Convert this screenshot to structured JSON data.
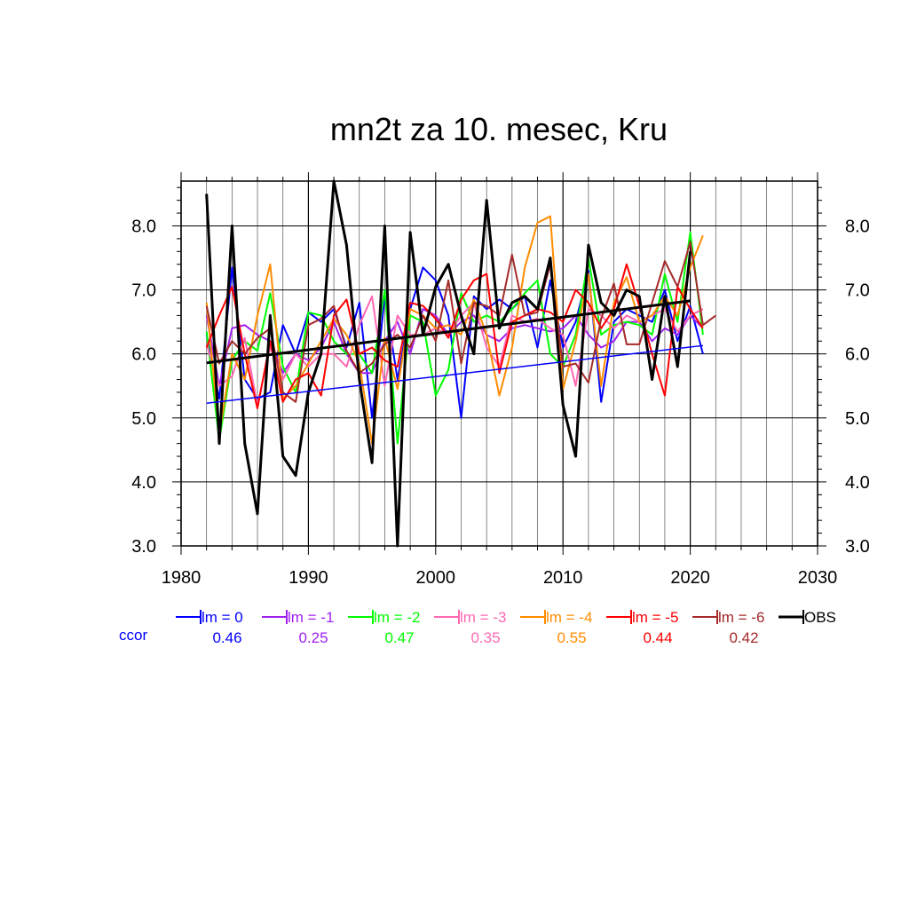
{
  "chart_data": {
    "type": "line",
    "title": "mn2t za 10. mesec, Kru",
    "xlim": [
      1980,
      2030
    ],
    "ylim": [
      3.0,
      8.7
    ],
    "x_ticks": [
      "1980",
      "1990",
      "2000",
      "2010",
      "2020",
      "2030"
    ],
    "y_ticks": [
      "3.0",
      "4.0",
      "5.0",
      "6.0",
      "7.0",
      "8.0"
    ],
    "grid": true,
    "legend_placement": "bottom",
    "ccor_label": "ccor",
    "series": [
      {
        "name": "lm = 0",
        "color": "#0000ff",
        "ccor": "0.46",
        "x": [
          1982,
          1983,
          1984,
          1985,
          1986,
          1987,
          1988,
          1989,
          1990,
          1991,
          1992,
          1993,
          1994,
          1995,
          1996,
          1997,
          1998,
          1999,
          2000,
          2001,
          2002,
          2003,
          2004,
          2005,
          2006,
          2007,
          2008,
          2009,
          2010,
          2011,
          2012,
          2013,
          2014,
          2015,
          2016,
          2017,
          2018,
          2019,
          2020,
          2021
        ],
        "y": [
          6.3,
          5.3,
          7.35,
          5.6,
          5.3,
          5.4,
          6.45,
          6.0,
          6.65,
          6.5,
          6.7,
          6.1,
          6.8,
          5.0,
          6.9,
          5.6,
          6.7,
          7.35,
          7.15,
          6.6,
          5.0,
          6.9,
          6.7,
          6.85,
          6.7,
          6.9,
          6.1,
          7.15,
          6.1,
          6.5,
          7.3,
          5.25,
          6.5,
          6.7,
          6.6,
          6.5,
          7.0,
          6.2,
          6.75,
          6.0
        ]
      },
      {
        "name": "lm = -1",
        "color": "#a020f0",
        "ccor": "0.25",
        "x": [
          1982,
          1983,
          1984,
          1985,
          1986,
          1987,
          1988,
          1989,
          1990,
          1991,
          1992,
          1993,
          1994,
          1995,
          1996,
          1997,
          1998,
          1999,
          2000,
          2001,
          2002,
          2003,
          2004,
          2005,
          2006,
          2007,
          2008,
          2009,
          2010,
          2011,
          2012,
          2013,
          2014,
          2015,
          2016,
          2017,
          2018,
          2019,
          2020,
          2021
        ],
        "y": [
          6.6,
          5.5,
          6.4,
          6.45,
          6.3,
          6.2,
          5.7,
          6.0,
          5.9,
          6.1,
          6.5,
          6.0,
          5.7,
          5.7,
          6.2,
          6.5,
          6.0,
          6.7,
          6.6,
          6.3,
          6.5,
          6.6,
          6.3,
          6.2,
          6.4,
          6.45,
          6.4,
          6.35,
          6.4,
          6.6,
          6.3,
          6.1,
          6.2,
          6.5,
          6.5,
          6.2,
          6.4,
          6.3,
          6.6,
          6.4
        ]
      },
      {
        "name": "lm = -2",
        "color": "#00ff00",
        "ccor": "0.47",
        "x": [
          1982,
          1983,
          1984,
          1985,
          1986,
          1987,
          1988,
          1989,
          1990,
          1991,
          1992,
          1993,
          1994,
          1995,
          1996,
          1997,
          1998,
          1999,
          2000,
          2001,
          2002,
          2003,
          2004,
          2005,
          2006,
          2007,
          2008,
          2009,
          2010,
          2011,
          2012,
          2013,
          2014,
          2015,
          2016,
          2017,
          2018,
          2019,
          2020,
          2021
        ],
        "y": [
          6.35,
          4.65,
          5.9,
          6.2,
          6.05,
          6.95,
          5.8,
          5.4,
          6.65,
          6.6,
          6.2,
          6.0,
          6.0,
          5.7,
          7.0,
          4.6,
          6.6,
          6.5,
          5.35,
          5.75,
          6.95,
          6.5,
          6.6,
          6.5,
          6.7,
          6.95,
          7.15,
          6.0,
          5.8,
          6.3,
          7.5,
          6.3,
          6.45,
          6.5,
          6.45,
          6.3,
          7.25,
          6.5,
          7.9,
          6.3
        ]
      },
      {
        "name": "lm = -3",
        "color": "#ff69b4",
        "ccor": "0.35",
        "x": [
          1982,
          1983,
          1984,
          1985,
          1986,
          1987,
          1988,
          1989,
          1990,
          1991,
          1992,
          1993,
          1994,
          1995,
          1996,
          1997,
          1998,
          1999,
          2000,
          2001,
          2002,
          2003,
          2004,
          2005,
          2006,
          2007,
          2008,
          2009,
          2010,
          2011,
          2012,
          2013,
          2014,
          2015,
          2016,
          2017,
          2018,
          2019,
          2020,
          2021
        ],
        "y": [
          6.15,
          5.5,
          5.65,
          6.25,
          5.2,
          6.1,
          5.6,
          6.0,
          5.8,
          6.0,
          6.0,
          5.8,
          6.45,
          6.9,
          5.5,
          6.6,
          6.3,
          6.3,
          6.4,
          6.3,
          6.6,
          6.8,
          6.1,
          5.8,
          6.6,
          6.5,
          6.55,
          6.4,
          6.3,
          5.5,
          6.7,
          6.6,
          6.4,
          6.6,
          6.5,
          6.6,
          6.7,
          6.35,
          6.6,
          6.7
        ]
      },
      {
        "name": "lm = -4",
        "color": "#ff8c00",
        "ccor": "0.55",
        "x": [
          1982,
          1983,
          1984,
          1985,
          1986,
          1987,
          1988,
          1989,
          1990,
          1991,
          1992,
          1993,
          1994,
          1995,
          1996,
          1997,
          1998,
          1999,
          2000,
          2001,
          2002,
          2003,
          2004,
          2005,
          2006,
          2007,
          2008,
          2009,
          2010,
          2011,
          2012,
          2013,
          2014,
          2015,
          2016,
          2017,
          2018,
          2019,
          2020,
          2021
        ],
        "y": [
          6.8,
          4.75,
          6.0,
          5.6,
          6.6,
          7.4,
          5.3,
          5.5,
          5.85,
          6.2,
          6.55,
          6.3,
          5.85,
          4.6,
          6.25,
          5.45,
          6.7,
          6.6,
          6.4,
          6.45,
          6.3,
          6.85,
          6.3,
          5.35,
          6.1,
          7.35,
          8.05,
          8.15,
          5.45,
          6.2,
          7.25,
          5.5,
          6.8,
          7.2,
          6.5,
          6.6,
          6.9,
          6.6,
          7.35,
          7.85
        ]
      },
      {
        "name": "lm = -5",
        "color": "#ff0000",
        "ccor": "0.44",
        "x": [
          1982,
          1983,
          1984,
          1985,
          1986,
          1987,
          1988,
          1989,
          1990,
          1991,
          1992,
          1993,
          1994,
          1995,
          1996,
          1997,
          1998,
          1999,
          2000,
          2001,
          2002,
          2003,
          2004,
          2005,
          2006,
          2007,
          2008,
          2009,
          2010,
          2011,
          2012,
          2013,
          2014,
          2015,
          2016,
          2017,
          2018,
          2019,
          2020,
          2021
        ],
        "y": [
          6.1,
          6.6,
          7.05,
          6.0,
          5.15,
          6.2,
          5.25,
          5.6,
          5.7,
          5.35,
          6.6,
          6.85,
          6.0,
          6.1,
          5.9,
          5.8,
          6.8,
          6.75,
          6.55,
          6.25,
          6.85,
          7.15,
          7.25,
          5.7,
          6.5,
          6.6,
          6.7,
          6.65,
          6.5,
          7.0,
          6.8,
          6.4,
          6.7,
          7.4,
          6.75,
          6.0,
          5.35,
          7.05,
          6.7,
          6.4
        ]
      },
      {
        "name": "lm = -6",
        "color": "#a52a2a",
        "ccor": "0.42",
        "x": [
          1982,
          1983,
          1984,
          1985,
          1986,
          1987,
          1988,
          1989,
          1990,
          1991,
          1992,
          1993,
          1994,
          1995,
          1996,
          1997,
          1998,
          1999,
          2000,
          2001,
          2002,
          2003,
          2004,
          2005,
          2006,
          2007,
          2008,
          2009,
          2010,
          2011,
          2012,
          2013,
          2014,
          2015,
          2016,
          2017,
          2018,
          2019,
          2020,
          2021,
          2022
        ],
        "y": [
          6.75,
          5.85,
          6.2,
          6.0,
          6.25,
          6.4,
          5.4,
          5.25,
          6.45,
          6.55,
          6.75,
          6.05,
          5.7,
          5.85,
          6.15,
          6.3,
          6.1,
          6.6,
          6.2,
          7.15,
          5.85,
          6.8,
          6.75,
          6.6,
          7.55,
          6.6,
          6.65,
          7.4,
          5.8,
          5.85,
          5.55,
          6.55,
          7.1,
          6.15,
          6.15,
          6.8,
          7.45,
          7.05,
          7.75,
          6.45,
          6.6
        ]
      },
      {
        "name": "OBS",
        "color": "#000000",
        "ccor": "",
        "x": [
          1982,
          1983,
          1984,
          1985,
          1986,
          1987,
          1988,
          1989,
          1990,
          1991,
          1992,
          1993,
          1994,
          1995,
          1996,
          1997,
          1998,
          1999,
          2000,
          2001,
          2002,
          2003,
          2004,
          2005,
          2006,
          2007,
          2008,
          2009,
          2010,
          2011,
          2012,
          2013,
          2014,
          2015,
          2016,
          2017,
          2018,
          2019,
          2020
        ],
        "y": [
          8.5,
          4.6,
          8.0,
          4.6,
          3.5,
          6.6,
          4.4,
          4.1,
          5.4,
          6.0,
          8.7,
          7.7,
          5.6,
          4.3,
          8.0,
          3.0,
          7.9,
          6.3,
          7.05,
          7.4,
          6.6,
          6.0,
          8.4,
          6.4,
          6.8,
          6.9,
          6.7,
          7.5,
          5.2,
          4.4,
          7.7,
          6.8,
          6.6,
          7.0,
          6.9,
          5.6,
          6.9,
          5.8,
          7.6
        ]
      }
    ],
    "trend_lines": [
      {
        "name": "lm = 0",
        "color": "#0000ff",
        "x": [
          1982,
          2021
        ],
        "y": [
          5.23,
          6.13
        ]
      },
      {
        "name": "OBS",
        "color": "#000000",
        "x": [
          1982,
          2020
        ],
        "y": [
          5.86,
          6.83
        ]
      }
    ]
  }
}
